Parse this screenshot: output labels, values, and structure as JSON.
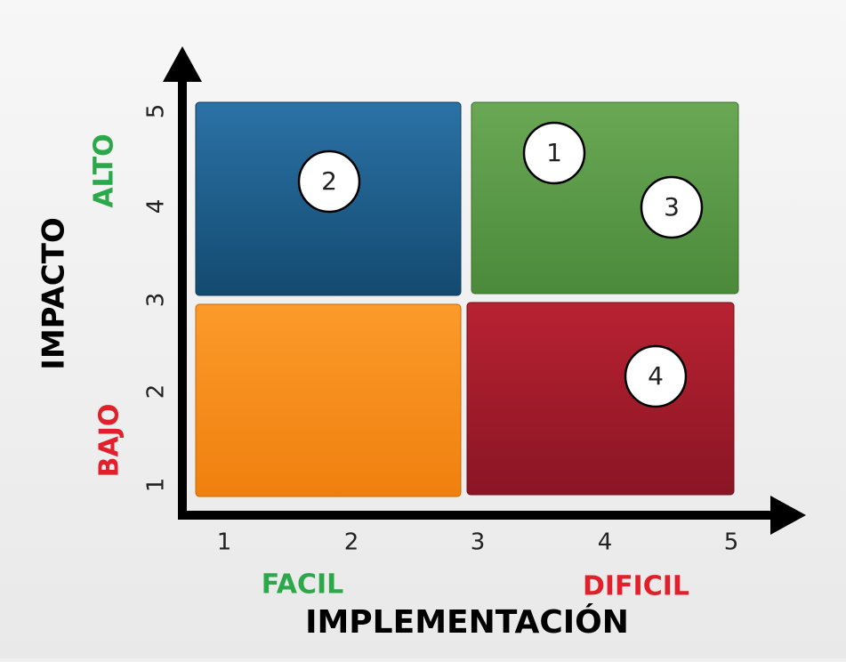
{
  "y_axis": {
    "title": "IMPACTO",
    "levels": [
      "ALTO",
      "BAJO"
    ],
    "ticks": [
      "1",
      "2",
      "3",
      "4",
      "5"
    ]
  },
  "x_axis": {
    "title": "IMPLEMENTACIÓN",
    "levels": [
      "FACIL",
      "DIFICIL"
    ],
    "ticks": [
      "1",
      "2",
      "3",
      "4",
      "5"
    ]
  },
  "items": [
    "1",
    "2",
    "3",
    "4"
  ]
}
